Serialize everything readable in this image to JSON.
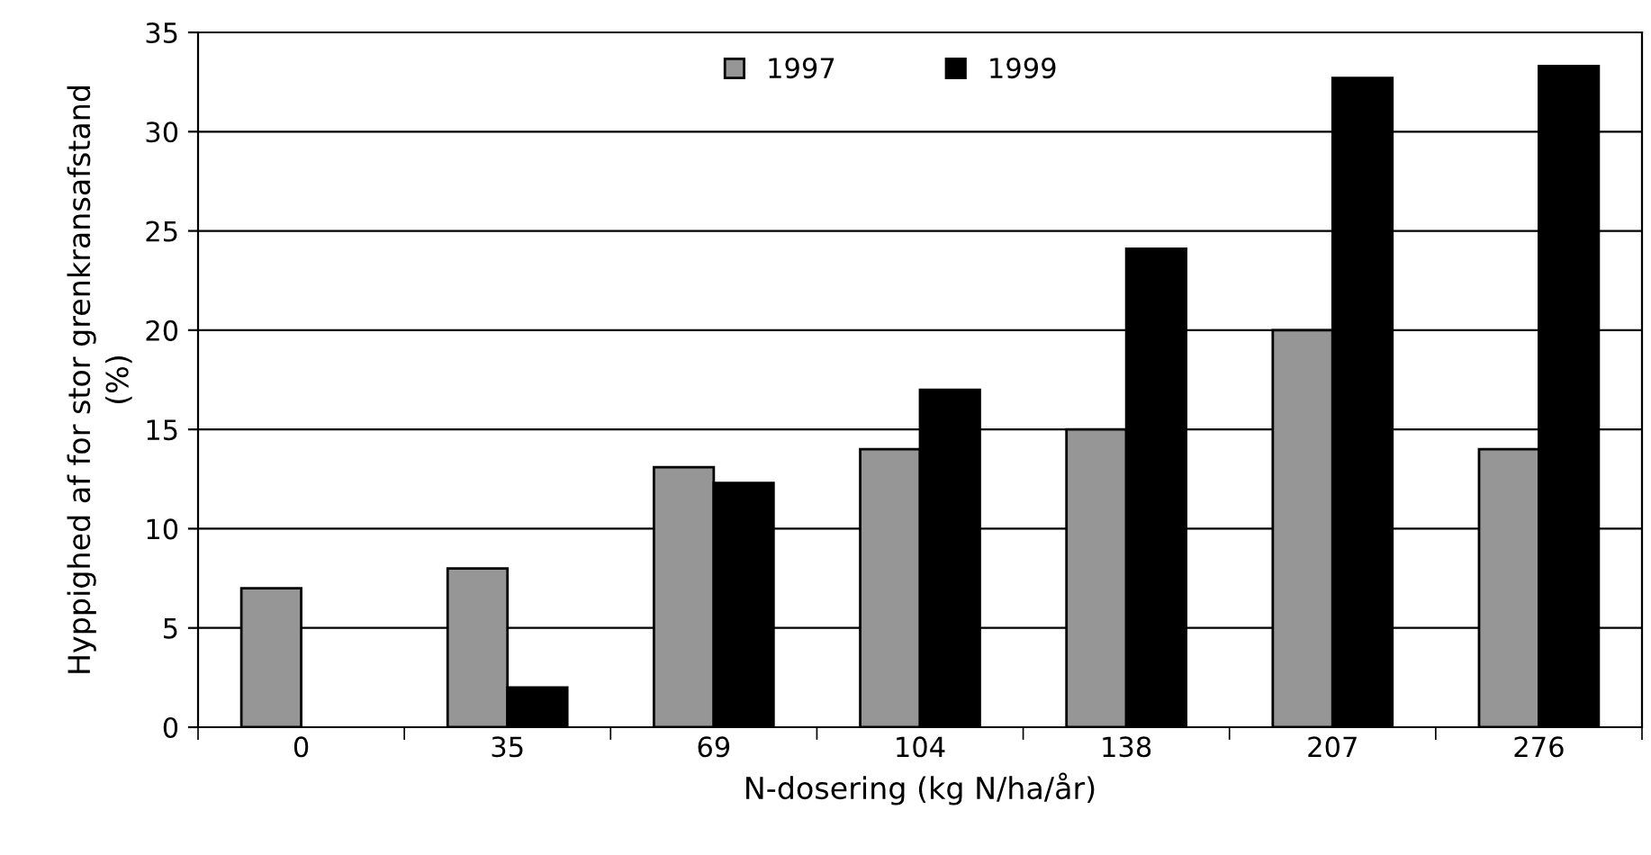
{
  "chart_data": {
    "type": "bar",
    "xlabel": "N-dosering (kg N/ha/år)",
    "ylabel": "Hyppighed af for stor grenkransafstand\n(%)",
    "categories": [
      "0",
      "35",
      "69",
      "104",
      "138",
      "207",
      "276"
    ],
    "series": [
      {
        "name": "1997",
        "color": "#969696",
        "values": [
          7,
          8,
          13.1,
          14,
          15,
          20,
          14
        ]
      },
      {
        "name": "1999",
        "color": "#000000",
        "values": [
          null,
          2,
          12.3,
          17,
          24.1,
          32.7,
          33.3
        ]
      }
    ],
    "ylim": [
      0,
      35
    ],
    "yticks": [
      0,
      5,
      10,
      15,
      20,
      25,
      30,
      35
    ],
    "grid": "y",
    "legend": "top"
  }
}
